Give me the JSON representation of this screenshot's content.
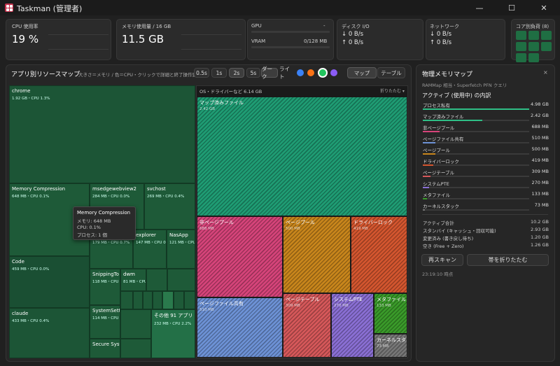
{
  "window": {
    "title": "Taskman (管理者)"
  },
  "stats": {
    "cpu": {
      "caption": "CPU 使用率",
      "value": "19 %"
    },
    "mem": {
      "caption": "メモリ使用量 / 16 GB",
      "value": "11.5 GB"
    },
    "gpu": {
      "caption": "GPU",
      "gpu_value": "-",
      "vram_label": "VRAM",
      "vram_value": "0/128 MB"
    },
    "disk": {
      "caption": "ディスク I/O",
      "read": "↓ 0 B/s",
      "write": "↑ 0 B/s"
    },
    "net": {
      "caption": "ネットワーク",
      "down": "↓ 0 B/s",
      "up": "↑ 0 B/s"
    },
    "cores": {
      "caption": "コア別負荷 (8)"
    }
  },
  "map": {
    "title": "アプリ別リソースマップ",
    "hint": "大きさ＝メモリ / 色＝CPU・クリックで詳細と終了操作更新",
    "intervals": [
      "0.5s",
      "1s",
      "2s",
      "5s"
    ],
    "theme_dark": "ダーク",
    "theme_light": "ライト",
    "dot_colors": [
      "#3b82f6",
      "#f97316",
      "#22c55e",
      "#8b5cf6"
    ],
    "view_map": "マップ",
    "view_table": "テーブル",
    "tiles": [
      {
        "name": "chrome",
        "stats": "1.92 GB・CPU 1.3%"
      },
      {
        "name": "Memory Compression",
        "stats": "648 MB・CPU 0.1%"
      },
      {
        "name": "msedgewebview2",
        "stats": "284 MB・CPU 0.0%"
      },
      {
        "name": "svchost",
        "stats": "269 MB・CPU 0.4%"
      },
      {
        "name": "Code",
        "stats": "459 MB・CPU 0.0%"
      },
      {
        "name": "explorer",
        "stats": "179 MB・CPU 0.7%"
      },
      {
        "name": "explorer",
        "stats": "147 MB・CPU 0"
      },
      {
        "name": "NasApp",
        "stats": "121 MB・CPU"
      },
      {
        "name": "SnippingTo",
        "stats": "118 MB・CPU"
      },
      {
        "name": "dwm",
        "stats": "81 MB・CPU"
      },
      {
        "name": "SystemSett",
        "stats": "114 MB・CPU"
      },
      {
        "name": "claude",
        "stats": "433 MB・CPU 0.4%"
      },
      {
        "name": "Secure Syst",
        "stats": ""
      },
      {
        "name": "その他 91 アプリ",
        "stats": "232 MB・CPU 2.2%"
      }
    ],
    "tooltip": {
      "title": "Memory Compression",
      "line1": "メモリ: 648 MB",
      "line2": "CPU: 0.1%",
      "line3": "プロセス: 1 個"
    },
    "os": {
      "header": "OS・ドライバーなど 6.14 GB",
      "collapse": "折りたたむ ▾",
      "tiles": [
        {
          "name": "マップ済みファイル",
          "stats": "2.42 GB",
          "color": "#1f9d74"
        },
        {
          "name": "非ページプール",
          "stats": "688 MB",
          "color": "#d6447a"
        },
        {
          "name": "ページプール",
          "stats": "500 MB",
          "color": "#c9861c"
        },
        {
          "name": "ドライバーロック",
          "stats": "419 MB",
          "color": "#d4562f"
        },
        {
          "name": "ページファイル共有",
          "stats": "510 MB",
          "color": "#6d92d6"
        },
        {
          "name": "ページテーブル",
          "stats": "309 MB",
          "color": "#d6585a"
        },
        {
          "name": "システムPTE",
          "stats": "270 MB",
          "color": "#8a6fd4"
        },
        {
          "name": "メタファイル",
          "stats": "133 MB",
          "color": "#3a9b2a"
        },
        {
          "name": "カーネルスタック",
          "stats": "73 MB",
          "color": "#777777"
        }
      ]
    }
  },
  "physmem": {
    "title": "物理メモリマップ",
    "close": "×",
    "sub": "RAMMap 相当・Superfetch PFN クエリ",
    "section": "アクティブ (使用中) の内訳",
    "rows": [
      {
        "label": "プロセス私有",
        "value": "4.98 GB",
        "color": "#2fbf86",
        "pct": 100
      },
      {
        "label": "マップ済みファイル",
        "value": "2.42 GB",
        "color": "#2fbf86",
        "pct": 56
      },
      {
        "label": "非ページプール",
        "value": "688 MB",
        "color": "#d6447a",
        "pct": 16
      },
      {
        "label": "ページファイル共有",
        "value": "510 MB",
        "color": "#6d92d6",
        "pct": 12
      },
      {
        "label": "ページプール",
        "value": "500 MB",
        "color": "#c9861c",
        "pct": 12
      },
      {
        "label": "ドライバーロック",
        "value": "419 MB",
        "color": "#d4562f",
        "pct": 10
      },
      {
        "label": "ページテーブル",
        "value": "309 MB",
        "color": "#d6585a",
        "pct": 7
      },
      {
        "label": "システムPTE",
        "value": "270 MB",
        "color": "#8a6fd4",
        "pct": 6
      },
      {
        "label": "メタファイル",
        "value": "133 MB",
        "color": "#3a9b2a",
        "pct": 4
      },
      {
        "label": "カーネルスタック",
        "value": "73 MB",
        "color": "#777777",
        "pct": 2
      }
    ],
    "summary": [
      {
        "label": "アクティブ合計",
        "value": "10.2 GB"
      },
      {
        "label": "スタンバイ (キャッシュ・回収可能)",
        "value": "2.93 GB"
      },
      {
        "label": "変更済み (書き戻し待ち)",
        "value": "1.20 GB"
      },
      {
        "label": "空き (Free + Zero)",
        "value": "1.26 GB"
      }
    ],
    "rescan": "再スキャン",
    "collapse_band": "帯を折りたたむ",
    "timestamp": "23:19:10 時点"
  }
}
